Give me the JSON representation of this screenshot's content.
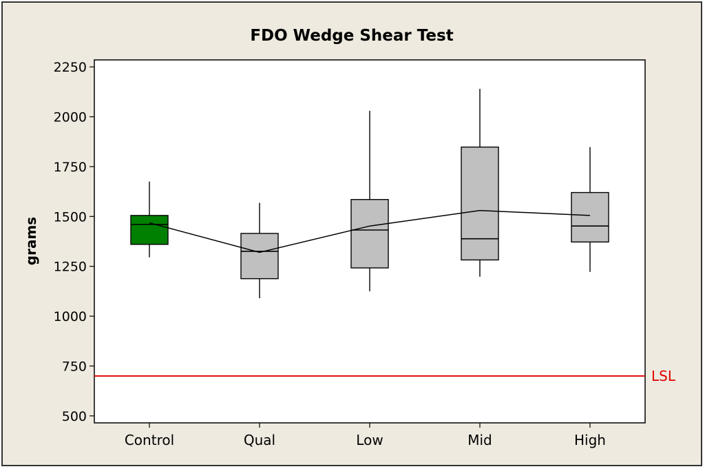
{
  "chart_data": {
    "type": "box",
    "title": "FDO Wedge Shear Test",
    "xlabel": "",
    "ylabel": "grams",
    "ylim": [
      465,
      2285
    ],
    "yticks": [
      500,
      750,
      1000,
      1250,
      1500,
      1750,
      2000,
      2250
    ],
    "categories": [
      "Control",
      "Qual",
      "Low",
      "Mid",
      "High"
    ],
    "boxes": [
      {
        "category": "Control",
        "min": 1295,
        "q1": 1360,
        "median": 1460,
        "q3": 1505,
        "max": 1675,
        "mean": 1468,
        "fill": "#008000"
      },
      {
        "category": "Qual",
        "min": 1090,
        "q1": 1188,
        "median": 1325,
        "q3": 1415,
        "max": 1568,
        "mean": 1320,
        "fill": "#c0c0c0"
      },
      {
        "category": "Low",
        "min": 1125,
        "q1": 1242,
        "median": 1432,
        "q3": 1585,
        "max": 2030,
        "mean": 1452,
        "fill": "#c0c0c0"
      },
      {
        "category": "Mid",
        "min": 1198,
        "q1": 1282,
        "median": 1388,
        "q3": 1848,
        "max": 2140,
        "mean": 1530,
        "fill": "#c0c0c0"
      },
      {
        "category": "High",
        "min": 1222,
        "q1": 1372,
        "median": 1452,
        "q3": 1620,
        "max": 1848,
        "mean": 1505,
        "fill": "#c0c0c0"
      }
    ],
    "mean_connect_line": true,
    "reference_lines": [
      {
        "label": "LSL",
        "value": 700,
        "color": "#e00000"
      }
    ],
    "grid": false,
    "legend": "none"
  }
}
